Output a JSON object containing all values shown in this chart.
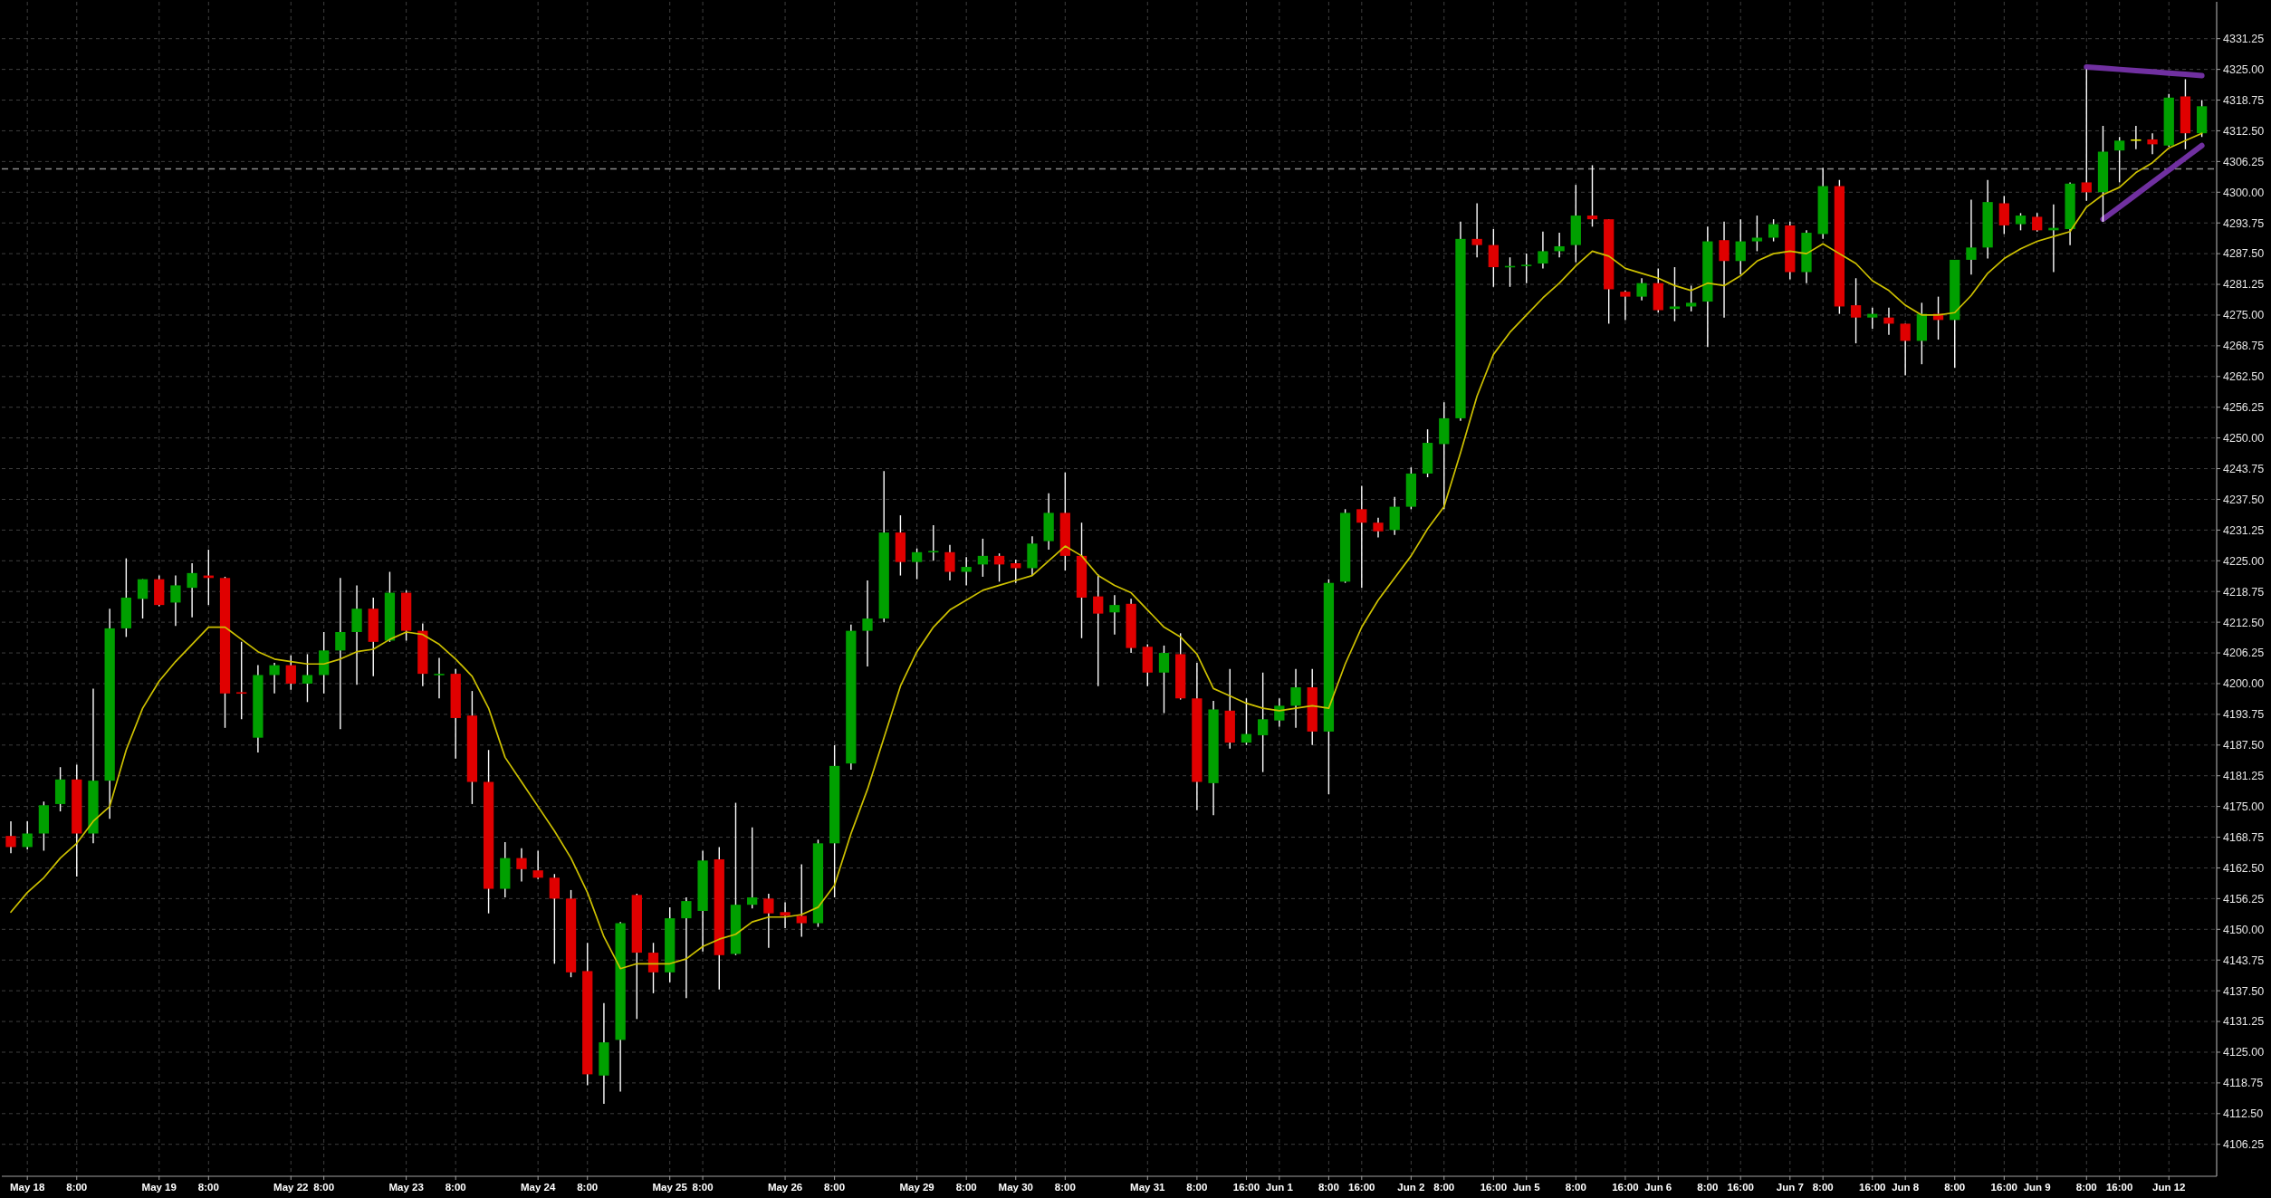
{
  "chart_data": {
    "type": "candlestick",
    "categories": [
      null,
      "May 18",
      null,
      null,
      "8:00",
      null,
      null,
      null,
      null,
      "May 19",
      null,
      null,
      "8:00",
      null,
      null,
      null,
      null,
      "May 22",
      null,
      "8:00",
      null,
      null,
      null,
      null,
      "May 23",
      null,
      null,
      "8:00",
      null,
      null,
      null,
      null,
      "May 24",
      null,
      null,
      "8:00",
      null,
      null,
      null,
      null,
      "May 25",
      null,
      "8:00",
      null,
      null,
      null,
      null,
      "May 26",
      null,
      null,
      "8:00",
      null,
      null,
      null,
      null,
      "May 29",
      null,
      null,
      "8:00",
      null,
      null,
      "May 30",
      null,
      null,
      "8:00",
      null,
      null,
      null,
      null,
      "May 31",
      null,
      null,
      "8:00",
      null,
      null,
      "16:00",
      null,
      "Jun 1",
      null,
      null,
      "8:00",
      null,
      "16:00",
      null,
      null,
      "Jun 2",
      null,
      "8:00",
      null,
      null,
      "16:00",
      null,
      "Jun 5",
      null,
      null,
      "8:00",
      null,
      null,
      "16:00",
      null,
      "Jun 6",
      null,
      null,
      "8:00",
      null,
      "16:00",
      null,
      null,
      "Jun 7",
      null,
      "8:00",
      null,
      null,
      "16:00",
      null,
      "Jun 8",
      null,
      null,
      "8:00",
      null,
      null,
      "16:00",
      null,
      "Jun 9",
      null,
      null,
      "8:00",
      null,
      "16:00",
      null,
      null,
      "Jun 12",
      null,
      null
    ],
    "ylim": [
      4099.75,
      4338.75
    ],
    "yticks": [
      4106.25,
      {
        "value": 4112.5,
        "label": "4112.50"
      },
      4118.75,
      {
        "value": 4125,
        "label": "4125.00"
      },
      4131.25,
      {
        "value": 4137.5,
        "label": "4137.50"
      },
      4143.75,
      {
        "value": 4150,
        "label": "4150.00"
      },
      4156.25,
      {
        "value": 4162.5,
        "label": "4162.50"
      },
      4168.75,
      {
        "value": 4175,
        "label": "4175.00"
      },
      4181.25,
      {
        "value": 4187.5,
        "label": "4187.50"
      },
      4193.75,
      {
        "value": 4200,
        "label": "4200.00"
      },
      4206.25,
      {
        "value": 4212.5,
        "label": "4212.50"
      },
      4218.75,
      {
        "value": 4225,
        "label": "4225.00"
      },
      4231.25,
      {
        "value": 4237.5,
        "label": "4237.50"
      },
      4243.75,
      {
        "value": 4250,
        "label": "4250.00"
      },
      4256.25,
      {
        "value": 4262.5,
        "label": "4262.50"
      },
      4268.75,
      {
        "value": 4275,
        "label": "4275.00"
      },
      4281.25,
      {
        "value": 4287.5,
        "label": "4287.50"
      },
      4293.75,
      {
        "value": 4300,
        "label": "4300.00"
      },
      4306.25,
      {
        "value": 4312.5,
        "label": "4312.50"
      },
      4318.75,
      {
        "value": 4325,
        "label": "4325.00"
      },
      4331.25
    ],
    "grid": true,
    "ref_lines": [
      {
        "axis": "y",
        "value": 4304.75,
        "color": "#8c8c8c",
        "line_style": "dashed"
      }
    ],
    "series": [
      {
        "ohlc": [
          [
            4169,
            4172,
            4165.5,
            4166.75
          ],
          [
            4166.75,
            4172,
            4166.25,
            4169.5
          ],
          [
            4169.5,
            4176,
            4166,
            4175.25
          ],
          [
            4175.5,
            4183,
            4174,
            4180.5
          ],
          [
            4180.5,
            4183.5,
            4160.75,
            4169.5
          ],
          [
            4169.5,
            4199,
            4167.5,
            4180.25
          ],
          [
            4180.25,
            4215.25,
            4172.5,
            4211.25
          ],
          [
            4211.25,
            4225.5,
            4209.5,
            4217.5
          ],
          [
            4217.25,
            4221.25,
            4213.25,
            4221.25
          ],
          [
            4221.25,
            4222,
            4215.75,
            4216
          ],
          [
            4216.5,
            4222,
            4211.75,
            4220
          ],
          [
            4219.5,
            4224.5,
            4213.5,
            4222.5
          ],
          [
            4222,
            4227.25,
            4216,
            4221.5
          ],
          [
            4221.5,
            4221.75,
            4191,
            4198
          ],
          [
            4198.25,
            4208.5,
            4192.75,
            4198
          ],
          [
            4189,
            4203.75,
            4186,
            4201.75
          ],
          [
            4201.75,
            4204.25,
            4198,
            4203.75
          ],
          [
            4203.75,
            4205.75,
            4198.75,
            4200
          ],
          [
            4200,
            4206,
            4196.25,
            4201.75
          ],
          [
            4201.75,
            4210.5,
            4198,
            4206.75
          ],
          [
            4206.75,
            4221.5,
            4190.75,
            4210.5
          ],
          [
            4210.5,
            4220,
            4199.75,
            4215.25
          ],
          [
            4215.25,
            4217.5,
            4201.5,
            4208.5
          ],
          [
            4208.75,
            4222.75,
            4208.5,
            4218.5
          ],
          [
            4218.5,
            4219,
            4208.75,
            4210.75
          ],
          [
            4210.75,
            4212.25,
            4199.5,
            4202
          ],
          [
            4201.75,
            4205.25,
            4197,
            4202
          ],
          [
            4202,
            4203,
            4184.75,
            4193
          ],
          [
            4193.5,
            4198.5,
            4175.5,
            4180
          ],
          [
            4180,
            4186.5,
            4153.25,
            4158.25
          ],
          [
            4158.25,
            4167.75,
            4156.5,
            4164.5
          ],
          [
            4164.5,
            4166.5,
            4159.75,
            4162.25
          ],
          [
            4162,
            4166,
            4160.25,
            4160.5
          ],
          [
            4160.5,
            4161.25,
            4143,
            4156.25
          ],
          [
            4156.25,
            4158,
            4140.25,
            4141.25
          ],
          [
            4141.5,
            4147.25,
            4118.25,
            4120.5
          ],
          [
            4120.25,
            4135,
            4114.5,
            4127
          ],
          [
            4127.5,
            4151.5,
            4117,
            4151.25
          ],
          [
            4157,
            4157.25,
            4131.75,
            4145.25
          ],
          [
            4145.25,
            4147.25,
            4137,
            4141.25
          ],
          [
            4141.25,
            4154.5,
            4139.25,
            4152.25
          ],
          [
            4152.25,
            4156.5,
            4136,
            4155.75
          ],
          [
            4153.75,
            4166,
            4145.5,
            4164
          ],
          [
            4164.25,
            4166.75,
            4137.75,
            4144.75
          ],
          [
            4145,
            4175.75,
            4144.75,
            4155
          ],
          [
            4155,
            4170.75,
            4154.25,
            4156.5
          ],
          [
            4156.25,
            4157.25,
            4146.25,
            4153.25
          ],
          [
            4153.5,
            4155.5,
            4150.25,
            4152.75
          ],
          [
            4152.75,
            4163.25,
            4148.5,
            4151.25
          ],
          [
            4151.25,
            4168.25,
            4150.5,
            4167.5
          ],
          [
            4167.5,
            4187.5,
            4156.5,
            4183.25
          ],
          [
            4183.75,
            4212,
            4182.5,
            4210.75
          ],
          [
            4210.75,
            4221,
            4203.5,
            4213.25
          ],
          [
            4213.25,
            4243.25,
            4212.5,
            4230.75
          ],
          [
            4230.75,
            4234.25,
            4222,
            4224.75
          ],
          [
            4224.75,
            4227.5,
            4221.25,
            4226.75
          ],
          [
            4226.75,
            4232.25,
            4225,
            4227
          ],
          [
            4226.75,
            4228.25,
            4221,
            4222.75
          ],
          [
            4222.75,
            4225.75,
            4220,
            4223.75
          ],
          [
            4224.25,
            4229.5,
            4221.75,
            4226
          ],
          [
            4226,
            4226.5,
            4220.75,
            4224.25
          ],
          [
            4224.5,
            4225.25,
            4220.5,
            4223.5
          ],
          [
            4223.5,
            4230,
            4222,
            4228.5
          ],
          [
            4229,
            4238.75,
            4227.25,
            4234.75
          ],
          [
            4234.75,
            4243,
            4223,
            4226
          ],
          [
            4226,
            4232.75,
            4209.25,
            4217.5
          ],
          [
            4217.75,
            4222.25,
            4199.5,
            4214.25
          ],
          [
            4214.5,
            4218,
            4210,
            4216
          ],
          [
            4216.25,
            4217.25,
            4206.25,
            4207.25
          ],
          [
            4207.5,
            4208,
            4199.5,
            4202.25
          ],
          [
            4202.25,
            4207.75,
            4194,
            4206.25
          ],
          [
            4206,
            4210.25,
            4196.75,
            4197
          ],
          [
            4197,
            4204.25,
            4174.25,
            4180
          ],
          [
            4179.75,
            4196.5,
            4173.25,
            4194.75
          ],
          [
            4194.5,
            4203,
            4186.75,
            4188
          ],
          [
            4188,
            4197,
            4187.5,
            4189.75
          ],
          [
            4189.5,
            4202.25,
            4182,
            4192.75
          ],
          [
            4192.5,
            4197,
            4191.25,
            4195.5
          ],
          [
            4195.5,
            4203,
            4191,
            4199.25
          ],
          [
            4199.25,
            4203,
            4187.5,
            4190.25
          ],
          [
            4190.25,
            4221.25,
            4177.5,
            4220.5
          ],
          [
            4220.75,
            4235.5,
            4220.5,
            4234.75
          ],
          [
            4235.5,
            4240.25,
            4219.5,
            4232.75
          ],
          [
            4232.75,
            4233.75,
            4229.75,
            4231
          ],
          [
            4231.25,
            4238,
            4230.25,
            4236
          ],
          [
            4236,
            4244,
            4235.5,
            4242.75
          ],
          [
            4242.75,
            4251.75,
            4242,
            4249
          ],
          [
            4248.75,
            4257.25,
            4235.5,
            4254
          ],
          [
            4254,
            4294,
            4253.5,
            4290.5
          ],
          [
            4290.5,
            4297.75,
            4286.75,
            4289.25
          ],
          [
            4289.25,
            4292.5,
            4280.75,
            4284.75
          ],
          [
            4284.75,
            4286.75,
            4280.75,
            4285
          ],
          [
            4285,
            4287.5,
            4281.5,
            4285.25
          ],
          [
            4285.5,
            4292,
            4284.5,
            4288
          ],
          [
            4288,
            4291.75,
            4286.75,
            4289
          ],
          [
            4289.25,
            4301.5,
            4285.75,
            4295.25
          ],
          [
            4295.25,
            4305.5,
            4293,
            4294.5
          ],
          [
            4294.5,
            4294.5,
            4273.25,
            4280.25
          ],
          [
            4279.75,
            4280,
            4274,
            4278.75
          ],
          [
            4278.75,
            4282.5,
            4278,
            4281.5
          ],
          [
            4281.5,
            4284.5,
            4275.5,
            4276
          ],
          [
            4276.25,
            4284.75,
            4273.75,
            4276.75
          ],
          [
            4276.75,
            4281,
            4275.75,
            4277.5
          ],
          [
            4277.75,
            4293,
            4268.5,
            4290
          ],
          [
            4290.25,
            4294,
            4274.5,
            4286
          ],
          [
            4286,
            4294.5,
            4283.25,
            4290
          ],
          [
            4290,
            4295.25,
            4288,
            4290.75
          ],
          [
            4290.75,
            4294.5,
            4290,
            4293.5
          ],
          [
            4293.25,
            4294,
            4282.25,
            4283.75
          ],
          [
            4283.75,
            4292.25,
            4281.5,
            4291.75
          ],
          [
            4291.5,
            4305,
            4290.5,
            4301.25
          ],
          [
            4301.25,
            4302.5,
            4275.25,
            4276.75
          ],
          [
            4277,
            4282.5,
            4269.25,
            4274.5
          ],
          [
            4274.5,
            4276.5,
            4272.25,
            4275.25
          ],
          [
            4274.5,
            4276.5,
            4271,
            4273.25
          ],
          [
            4273.25,
            4273.25,
            4262.75,
            4269.75
          ],
          [
            4269.75,
            4277.5,
            4265,
            4275.25
          ],
          [
            4275.25,
            4278.75,
            4270,
            4274
          ],
          [
            4274,
            4286.25,
            4264.25,
            4286.25
          ],
          [
            4286.25,
            4298.5,
            4283.25,
            4288.75
          ],
          [
            4288.75,
            4302.5,
            4286.5,
            4298
          ],
          [
            4297.75,
            4299.25,
            4291.5,
            4293.25
          ],
          [
            4293.5,
            4295.75,
            4292.25,
            4295.25
          ],
          [
            4295,
            4295.75,
            4292,
            4292.25
          ],
          [
            4292.25,
            4297.5,
            4283.75,
            4292.75
          ],
          [
            4292.5,
            4302,
            4289.25,
            4301.75
          ],
          [
            4302,
            4325,
            4298.25,
            4300
          ],
          [
            4300,
            4313.5,
            4294,
            4308.25
          ],
          [
            4308.5,
            4311.25,
            4302,
            4310.5
          ],
          [
            4310.75,
            4313.5,
            4308.75,
            4310.75
          ],
          [
            4310.75,
            4312,
            4307.75,
            4309.75
          ],
          [
            4309.5,
            4320,
            4309.25,
            4319.25
          ],
          [
            4319.5,
            4323,
            4308.75,
            4312
          ],
          [
            4312,
            4318.75,
            4311.25,
            4317.5
          ]
        ],
        "colors": [
          "#e00000",
          "#00a000",
          "#00a000",
          "#00a000",
          "#e00000",
          "#00a000",
          "#00a000",
          "#00a000",
          "#00a000",
          "#e00000",
          "#00a000",
          "#00a000",
          "#e00000",
          "#e00000",
          "#e00000",
          "#00a000",
          "#00a000",
          "#e00000",
          "#00a000",
          "#00a000",
          "#00a000",
          "#00a000",
          "#e00000",
          "#00a000",
          "#e00000",
          "#e00000",
          "#00a000",
          "#e00000",
          "#e00000",
          "#e00000",
          "#00a000",
          "#e00000",
          "#e00000",
          "#e00000",
          "#e00000",
          "#e00000",
          "#00a000",
          "#00a000",
          "#e00000",
          "#e00000",
          "#00a000",
          "#00a000",
          "#00a000",
          "#e00000",
          "#00a000",
          "#00a000",
          "#e00000",
          "#e00000",
          "#e00000",
          "#00a000",
          "#00a000",
          "#00a000",
          "#00a000",
          "#00a000",
          "#e00000",
          "#00a000",
          "#00a000",
          "#e00000",
          "#00a000",
          "#00a000",
          "#e00000",
          "#e00000",
          "#00a000",
          "#00a000",
          "#e00000",
          "#e00000",
          "#e00000",
          "#00a000",
          "#e00000",
          "#e00000",
          "#00a000",
          "#e00000",
          "#e00000",
          "#00a000",
          "#e00000",
          "#00a000",
          "#00a000",
          "#00a000",
          "#00a000",
          "#e00000",
          "#00a000",
          "#00a000",
          "#e00000",
          "#e00000",
          "#00a000",
          "#00a000",
          "#00a000",
          "#00a000",
          "#00a000",
          "#e00000",
          "#e00000",
          "#00a000",
          "#00a000",
          "#00a000",
          "#00a000",
          "#00a000",
          "#e00000",
          "#e00000",
          "#e00000",
          "#00a000",
          "#e00000",
          "#00a000",
          "#00a000",
          "#00a000",
          "#e00000",
          "#00a000",
          "#00a000",
          "#00a000",
          "#e00000",
          "#00a000",
          "#00a000",
          "#e00000",
          "#e00000",
          "#00a000",
          "#e00000",
          "#e00000",
          "#00a000",
          "#e00000",
          "#00a000",
          "#00a000",
          "#00a000",
          "#e00000",
          "#00a000",
          "#e00000",
          "#00a000",
          "#00a000",
          "#e00000",
          "#00a000",
          "#00a000",
          "#e8e800",
          "#e00000",
          "#00a000",
          "#e00000",
          "#00a000"
        ]
      },
      {
        "type": "line",
        "color": "#cdc000",
        "values": [
          4153.5,
          4157.5,
          4160.5,
          4164.5,
          4167.5,
          4172,
          4175,
          4186.5,
          4195,
          4200.5,
          4204.5,
          4208,
          4211.5,
          4211.5,
          4209,
          4206.5,
          4205,
          4204.5,
          4204,
          4204,
          4205,
          4206.5,
          4207,
          4209,
          4210.5,
          4210,
          4208,
          4205,
          4201.5,
          4195,
          4185,
          4180,
          4175,
          4170,
          4164.5,
          4157.5,
          4148.5,
          4142,
          4143,
          4143,
          4143,
          4144,
          4146.5,
          4148,
          4149,
          4151.5,
          4152.5,
          4152.5,
          4153,
          4154.5,
          4159,
          4169.5,
          4178.5,
          4189,
          4199.5,
          4206.5,
          4211.5,
          4215,
          4217,
          4219,
          4220,
          4221,
          4222,
          4225,
          4228,
          4226,
          4222,
          4220,
          4218.5,
          4215,
          4211.5,
          4209.5,
          4206,
          4199,
          4197.5,
          4196,
          4195,
          4194.5,
          4195,
          4195.5,
          4195,
          4204,
          4211.5,
          4217,
          4221.5,
          4226,
          4231.5,
          4236,
          4247,
          4258.5,
          4267,
          4271.5,
          4275,
          4278.5,
          4281.5,
          4285,
          4288,
          4287,
          4284.5,
          4283.5,
          4282.5,
          4281,
          4280,
          4281.5,
          4281,
          4283,
          4286,
          4287.5,
          4288,
          4287.5,
          4289.5,
          4287.5,
          4285.5,
          4282,
          4280,
          4277,
          4275,
          4275,
          4275.5,
          4279,
          4283.5,
          4286.5,
          4288.5,
          4290,
          4291,
          4292,
          4297,
          4299.5,
          4301,
          4304,
          4306,
          4309,
          4310.5,
          4312
        ]
      },
      {
        "type": "line",
        "color": "#7030a0",
        "values": [
          null,
          null,
          null,
          null,
          null,
          null,
          null,
          null,
          null,
          null,
          null,
          null,
          null,
          null,
          null,
          null,
          null,
          null,
          null,
          null,
          null,
          null,
          null,
          null,
          null,
          null,
          null,
          null,
          null,
          null,
          null,
          null,
          null,
          null,
          null,
          null,
          null,
          null,
          null,
          null,
          null,
          null,
          null,
          null,
          null,
          null,
          null,
          null,
          null,
          null,
          null,
          null,
          null,
          null,
          null,
          null,
          null,
          null,
          null,
          null,
          null,
          null,
          null,
          null,
          null,
          null,
          null,
          null,
          null,
          null,
          null,
          null,
          null,
          null,
          null,
          null,
          null,
          null,
          null,
          null,
          null,
          null,
          null,
          null,
          null,
          null,
          null,
          null,
          null,
          null,
          null,
          null,
          null,
          null,
          null,
          null,
          null,
          null,
          null,
          null,
          null,
          null,
          null,
          null,
          null,
          null,
          null,
          null,
          null,
          null,
          null,
          null,
          null,
          null,
          null,
          null,
          null,
          null,
          null,
          null,
          null,
          null,
          null,
          null,
          null,
          null,
          4325.5,
          4325.25,
          4325,
          4324.75,
          4324.5,
          4324.25,
          4324,
          4323.75
        ]
      },
      {
        "type": "line",
        "color": "#7030a0",
        "values": [
          null,
          null,
          null,
          null,
          null,
          null,
          null,
          null,
          null,
          null,
          null,
          null,
          null,
          null,
          null,
          null,
          null,
          null,
          null,
          null,
          null,
          null,
          null,
          null,
          null,
          null,
          null,
          null,
          null,
          null,
          null,
          null,
          null,
          null,
          null,
          null,
          null,
          null,
          null,
          null,
          null,
          null,
          null,
          null,
          null,
          null,
          null,
          null,
          null,
          null,
          null,
          null,
          null,
          null,
          null,
          null,
          null,
          null,
          null,
          null,
          null,
          null,
          null,
          null,
          null,
          null,
          null,
          null,
          null,
          null,
          null,
          null,
          null,
          null,
          null,
          null,
          null,
          null,
          null,
          null,
          null,
          null,
          null,
          null,
          null,
          null,
          null,
          null,
          null,
          null,
          null,
          null,
          null,
          null,
          null,
          null,
          null,
          null,
          null,
          null,
          null,
          null,
          null,
          null,
          null,
          null,
          null,
          null,
          null,
          null,
          null,
          null,
          null,
          null,
          null,
          null,
          null,
          null,
          null,
          null,
          null,
          null,
          null,
          null,
          null,
          null,
          null,
          4294.5,
          4297,
          4299.5,
          4302,
          4304.5,
          4307,
          4309.5
        ]
      }
    ]
  }
}
